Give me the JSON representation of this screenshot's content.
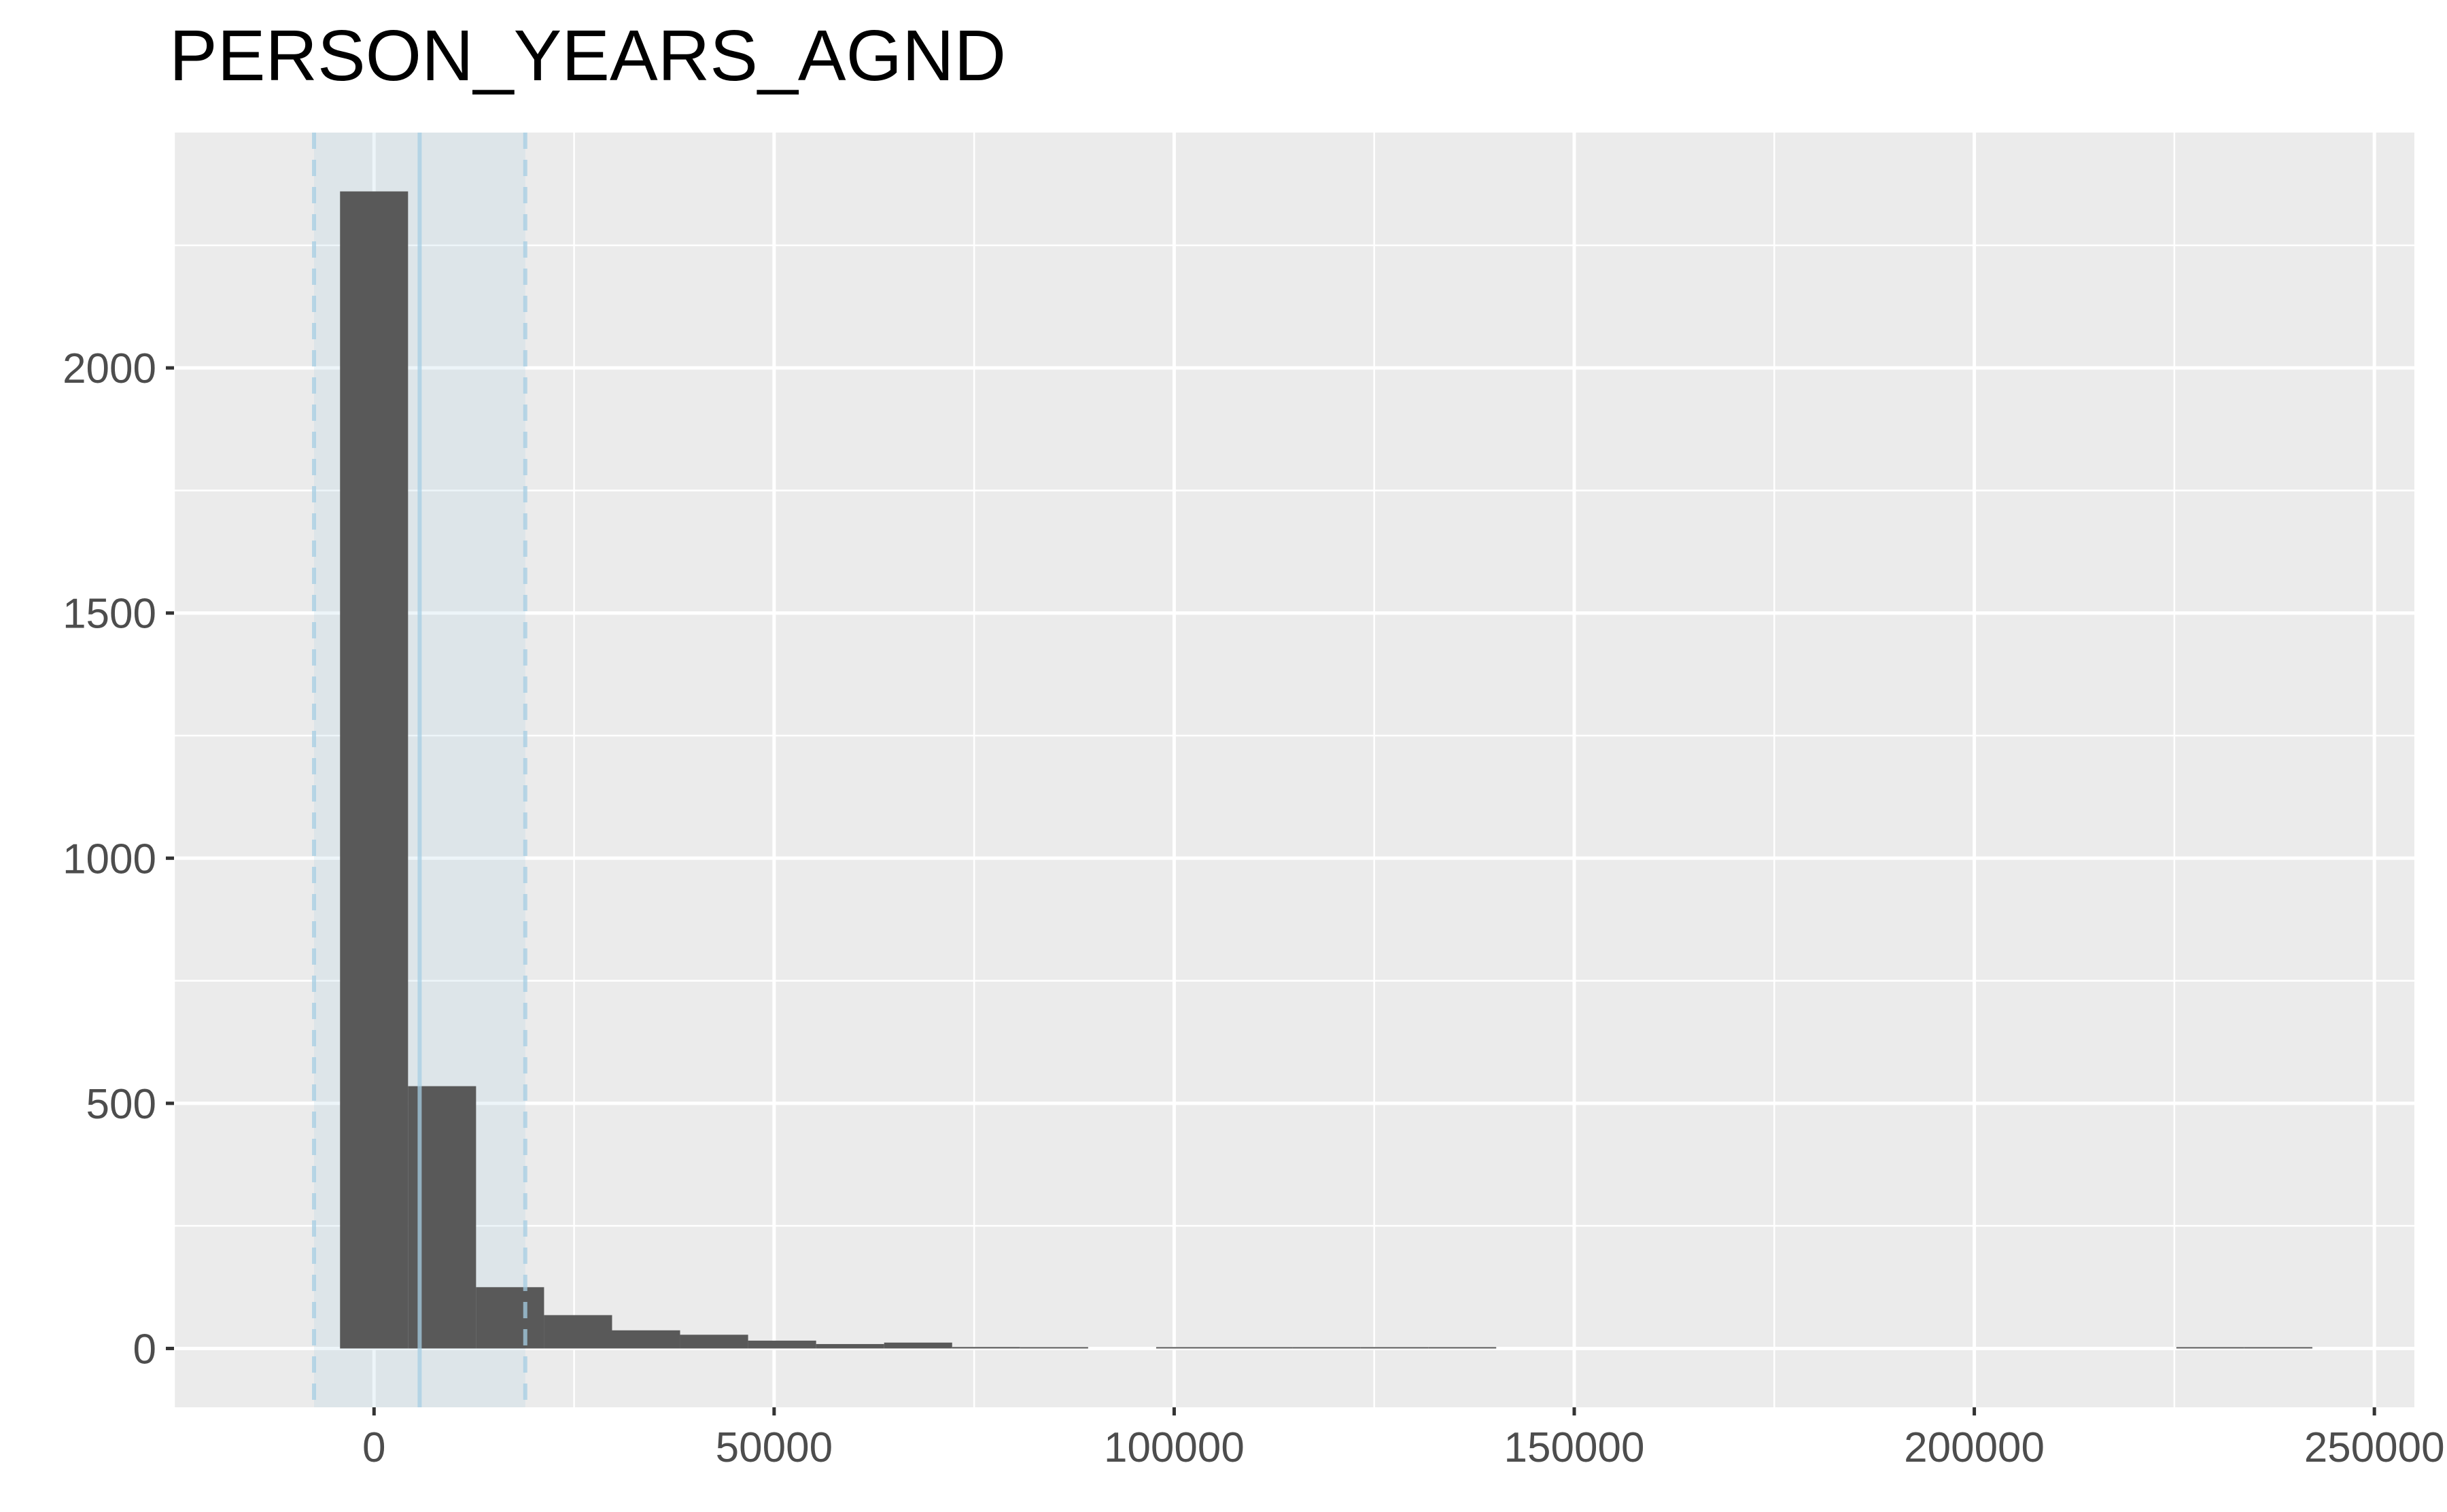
{
  "chart_data": {
    "type": "bar",
    "title": "PERSON_YEARS_AGND",
    "xlabel": "",
    "ylabel": "",
    "xlim": [
      -25000,
      255000
    ],
    "ylim": [
      -120,
      2480
    ],
    "x_ticks": [
      0,
      50000,
      100000,
      150000,
      200000,
      250000
    ],
    "x_tick_labels": [
      "0",
      "50000",
      "100000",
      "150000",
      "200000",
      "250000"
    ],
    "y_ticks": [
      0,
      500,
      1000,
      1500,
      2000
    ],
    "y_tick_labels": [
      "0",
      "500",
      "1000",
      "1500",
      "2000"
    ],
    "grid": true,
    "bin_width": 8500,
    "bins": [
      {
        "x": 0,
        "count": 2360
      },
      {
        "x": 8500,
        "count": 535
      },
      {
        "x": 17000,
        "count": 125
      },
      {
        "x": 25500,
        "count": 68
      },
      {
        "x": 34000,
        "count": 37
      },
      {
        "x": 42500,
        "count": 28
      },
      {
        "x": 51000,
        "count": 16
      },
      {
        "x": 59500,
        "count": 9
      },
      {
        "x": 68000,
        "count": 12
      },
      {
        "x": 76500,
        "count": 3
      },
      {
        "x": 85000,
        "count": 2
      },
      {
        "x": 93500,
        "count": 0
      },
      {
        "x": 102000,
        "count": 1
      },
      {
        "x": 110500,
        "count": 1
      },
      {
        "x": 119000,
        "count": 1
      },
      {
        "x": 127500,
        "count": 1
      },
      {
        "x": 136000,
        "count": 1
      },
      {
        "x": 144500,
        "count": 0
      },
      {
        "x": 153000,
        "count": 0
      },
      {
        "x": 161500,
        "count": 0
      },
      {
        "x": 170000,
        "count": 0
      },
      {
        "x": 178500,
        "count": 0
      },
      {
        "x": 187000,
        "count": 0
      },
      {
        "x": 195500,
        "count": 0
      },
      {
        "x": 204000,
        "count": 0
      },
      {
        "x": 212500,
        "count": 0
      },
      {
        "x": 221000,
        "count": 0
      },
      {
        "x": 229500,
        "count": 1
      },
      {
        "x": 238000,
        "count": 1
      }
    ],
    "reference_lines": {
      "mean": 5700,
      "lower": -7500,
      "upper": 18900
    },
    "colors": {
      "panel": "#ebebeb",
      "grid_major": "#ffffff",
      "bar_fill": "#595959",
      "band_fill": "#a6cee3",
      "ref_line": "#a6cee3"
    }
  }
}
